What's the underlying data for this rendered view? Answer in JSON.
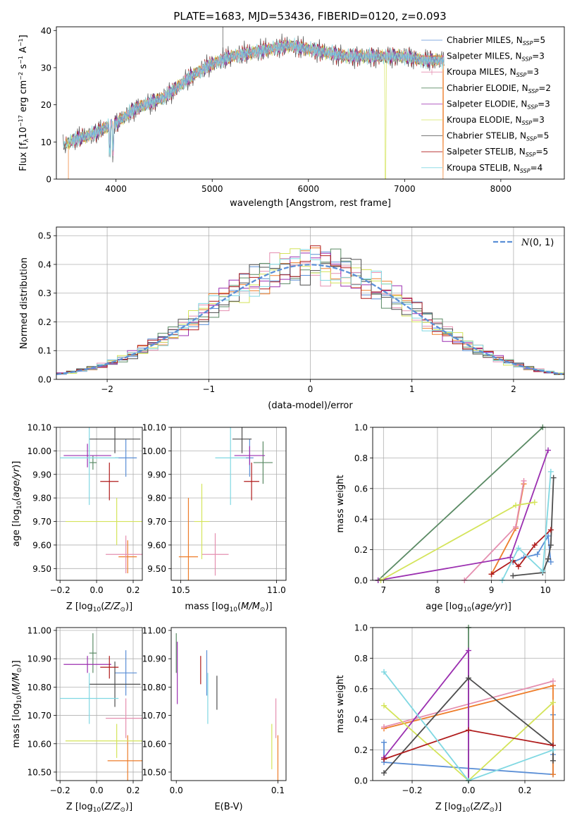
{
  "figure_title": "PLATE=1683, MJD=53436, FIBERID=0120, z=0.093",
  "colors": {
    "Chabrier MILES": "#5b8fd6",
    "Salpeter MILES": "#ee7d2a",
    "Kroupa MILES": "#e58fb0",
    "Chabrier ELODIE": "#5a8a64",
    "Salpeter ELODIE": "#9b2fb0",
    "Kroupa ELODIE": "#d4e45a",
    "Chabrier STELIB": "#4d4d4d",
    "Salpeter STELIB": "#b01c1c",
    "Kroupa STELIB": "#80d8e2",
    "normal": "#5b8fd6",
    "grid": "#b0b0b0"
  },
  "chart_data": [
    {
      "id": "spectrum",
      "type": "line",
      "xlabel": "wavelength [Angstrom, rest frame]",
      "ylabel": "Flux [f_λ10^-17 erg cm^-2 s^-1 A^-1]",
      "xlim": [
        3380,
        8660
      ],
      "ylim": [
        0,
        41
      ],
      "xticks": [
        4000,
        5000,
        6000,
        7000,
        8000
      ],
      "yticks": [
        0,
        10,
        20,
        30,
        40
      ],
      "grid": false,
      "legend_position": "top-right",
      "legend": [
        "Chabrier MILES, N_SSP=5",
        "Salpeter MILES, N_SSP=3",
        "Kroupa MILES, N_SSP=3",
        "Chabrier ELODIE, N_SSP=2",
        "Salpeter ELODIE, N_SSP=3",
        "Kroupa ELODIE, N_SSP=3",
        "Chabrier STELIB, N_SSP=5",
        "Salpeter STELIB, N_SSP=5",
        "Kroupa STELIB, N_SSP=4"
      ],
      "continuum": {
        "x": [
          3450,
          3600,
          3750,
          3900,
          4000,
          4100,
          4200,
          4300,
          4400,
          4500,
          4600,
          4800,
          5000,
          5200,
          5400,
          5600,
          5800,
          6000,
          6200,
          6400,
          6600,
          6800,
          7000,
          7200,
          7400
        ],
        "y": [
          9,
          11,
          12,
          14,
          15,
          17,
          19,
          20,
          21,
          22,
          24,
          28,
          31,
          33,
          34,
          35,
          36,
          35,
          34,
          33,
          33,
          33,
          33,
          32,
          32
        ]
      }
    },
    {
      "id": "residuals",
      "type": "histogram",
      "xlabel": "(data-model)/error",
      "ylabel": "Normed distribution",
      "xlim": [
        -2.5,
        2.5
      ],
      "ylim": [
        0,
        0.53
      ],
      "xticks": [
        -2,
        -1,
        0,
        1,
        2
      ],
      "yticks": [
        0.0,
        0.1,
        0.2,
        0.3,
        0.4,
        0.5
      ],
      "grid": true,
      "legend_position": "top-right",
      "legend": [
        "N(0,1)"
      ],
      "reference_curve": "N(0,1)"
    },
    {
      "id": "age-vs-Z",
      "type": "errorbar",
      "xlabel": "Z [log10(Z/Z_sun)]",
      "ylabel": "age  [log10(age/yr)]",
      "xlim": [
        -0.22,
        0.25
      ],
      "ylim": [
        9.45,
        10.1
      ],
      "xticks": [
        -0.2,
        0.0,
        0.2
      ],
      "yticks": [
        9.5,
        9.6,
        9.7,
        9.8,
        9.9,
        10.0,
        10.1
      ],
      "grid": true,
      "points": [
        {
          "model": "Chabrier MILES",
          "x": 0.16,
          "xerr": 0.06,
          "y": 9.97,
          "yerr": 0.08
        },
        {
          "model": "Salpeter MILES",
          "x": 0.17,
          "xerr": 0.05,
          "y": 9.55,
          "yerr": 0.07
        },
        {
          "model": "Kroupa MILES",
          "x": 0.16,
          "xerr": 0.11,
          "y": 9.56,
          "yerr": 0.08
        },
        {
          "model": "Chabrier ELODIE",
          "x": -0.02,
          "xerr": 0.02,
          "y": 9.95,
          "yerr": 0.03
        },
        {
          "model": "Salpeter ELODIE",
          "x": -0.05,
          "xerr": 0.13,
          "y": 9.98,
          "yerr": 0.05
        },
        {
          "model": "Kroupa ELODIE",
          "x": 0.11,
          "xerr": 0.28,
          "y": 9.7,
          "yerr": 0.1
        },
        {
          "model": "Chabrier STELIB",
          "x": 0.1,
          "xerr": 0.14,
          "y": 10.05,
          "yerr": 0.06
        },
        {
          "model": "Salpeter STELIB",
          "x": 0.07,
          "xerr": 0.05,
          "y": 9.87,
          "yerr": 0.08
        },
        {
          "model": "Kroupa STELIB",
          "x": -0.04,
          "xerr": 0.16,
          "y": 9.97,
          "yerr": 0.2
        }
      ]
    },
    {
      "id": "age-vs-mass",
      "type": "errorbar",
      "xlabel": "mass [log10(M/M_sun)]",
      "ylabel": "",
      "xlim": [
        10.45,
        11.05
      ],
      "ylim": [
        9.45,
        10.1
      ],
      "xticks": [
        10.5,
        11.0
      ],
      "yticks": [
        9.5,
        9.6,
        9.7,
        9.8,
        9.9,
        10.0,
        10.1
      ],
      "grid": true,
      "points": [
        {
          "model": "Chabrier MILES",
          "x": 10.86,
          "xerr": 0.02,
          "y": 9.97,
          "yerr": 0.08
        },
        {
          "model": "Salpeter MILES",
          "x": 10.54,
          "xerr": 0.05,
          "y": 9.55,
          "yerr": 0.25
        },
        {
          "model": "Kroupa MILES",
          "x": 10.68,
          "xerr": 0.07,
          "y": 9.56,
          "yerr": 0.09
        },
        {
          "model": "Chabrier ELODIE",
          "x": 10.93,
          "xerr": 0.05,
          "y": 9.95,
          "yerr": 0.09
        },
        {
          "model": "Salpeter ELODIE",
          "x": 10.86,
          "xerr": 0.08,
          "y": 9.98,
          "yerr": 0.04
        },
        {
          "model": "Kroupa ELODIE",
          "x": 10.61,
          "xerr": 0.04,
          "y": 9.7,
          "yerr": 0.16
        },
        {
          "model": "Chabrier STELIB",
          "x": 10.82,
          "xerr": 0.05,
          "y": 10.05,
          "yerr": 0.06
        },
        {
          "model": "Salpeter STELIB",
          "x": 10.87,
          "xerr": 0.04,
          "y": 9.87,
          "yerr": 0.08
        },
        {
          "model": "Kroupa STELIB",
          "x": 10.76,
          "xerr": 0.08,
          "y": 9.97,
          "yerr": 0.2
        }
      ]
    },
    {
      "id": "weights-vs-age",
      "type": "line",
      "xlabel": "age  [log10(age/yr)]",
      "ylabel": "mass weight",
      "xlim": [
        6.8,
        10.35
      ],
      "ylim": [
        0,
        1.0
      ],
      "xticks": [
        7,
        8,
        9,
        10
      ],
      "yticks": [
        0.0,
        0.2,
        0.4,
        0.6,
        0.8,
        1.0
      ],
      "grid": true,
      "series": [
        {
          "model": "Chabrier MILES",
          "x": [
            9.4,
            9.6,
            9.85,
            10.05,
            10.1
          ],
          "y": [
            0.12,
            0.15,
            0.17,
            0.29,
            0.12
          ]
        },
        {
          "model": "Salpeter MILES",
          "x": [
            9.0,
            9.45,
            9.6
          ],
          "y": [
            0.04,
            0.34,
            0.63
          ]
        },
        {
          "model": "Kroupa MILES",
          "x": [
            8.5,
            9.45,
            9.6
          ],
          "y": [
            0.0,
            0.35,
            0.65
          ]
        },
        {
          "model": "Chabrier ELODIE",
          "x": [
            6.9,
            9.95
          ],
          "y": [
            0.0,
            1.0
          ]
        },
        {
          "model": "Salpeter ELODIE",
          "x": [
            6.9,
            9.35,
            10.05
          ],
          "y": [
            0.0,
            0.15,
            0.85
          ]
        },
        {
          "model": "Kroupa ELODIE",
          "x": [
            6.95,
            9.45,
            9.8
          ],
          "y": [
            0.0,
            0.49,
            0.51
          ]
        },
        {
          "model": "Chabrier STELIB",
          "x": [
            9.4,
            9.95,
            10.05,
            10.1,
            10.15
          ],
          "y": [
            0.03,
            0.05,
            0.14,
            0.23,
            0.67
          ]
        },
        {
          "model": "Salpeter STELIB",
          "x": [
            9.0,
            9.4,
            9.5,
            9.8,
            10.1
          ],
          "y": [
            0.04,
            0.13,
            0.09,
            0.23,
            0.33
          ]
        },
        {
          "model": "Kroupa STELIB",
          "x": [
            9.2,
            9.5,
            9.95,
            10.1
          ],
          "y": [
            0.0,
            0.21,
            0.06,
            0.71
          ]
        }
      ]
    },
    {
      "id": "mass-vs-Z",
      "type": "errorbar",
      "xlabel": "Z [log10(Z/Z_sun)]",
      "ylabel": "mass [log10(M/M_sun)]",
      "xlim": [
        -0.22,
        0.25
      ],
      "ylim": [
        10.47,
        11.01
      ],
      "xticks": [
        -0.2,
        0.0,
        0.2
      ],
      "yticks": [
        10.5,
        10.6,
        10.7,
        10.8,
        10.9,
        11.0
      ],
      "grid": true,
      "points": [
        {
          "model": "Chabrier MILES",
          "x": 0.16,
          "xerr": 0.06,
          "y": 10.85,
          "yerr": 0.08
        },
        {
          "model": "Salpeter MILES",
          "x": 0.17,
          "xerr": 0.11,
          "y": 10.54,
          "yerr": 0.09
        },
        {
          "model": "Kroupa MILES",
          "x": 0.16,
          "xerr": 0.11,
          "y": 10.69,
          "yerr": 0.07
        },
        {
          "model": "Chabrier ELODIE",
          "x": -0.02,
          "xerr": 0.02,
          "y": 10.92,
          "yerr": 0.07
        },
        {
          "model": "Salpeter ELODIE",
          "x": -0.05,
          "xerr": 0.13,
          "y": 10.88,
          "yerr": 0.03
        },
        {
          "model": "Kroupa ELODIE",
          "x": 0.11,
          "xerr": 0.28,
          "y": 10.61,
          "yerr": 0.06
        },
        {
          "model": "Chabrier STELIB",
          "x": 0.1,
          "xerr": 0.14,
          "y": 10.81,
          "yerr": 0.08
        },
        {
          "model": "Salpeter STELIB",
          "x": 0.07,
          "xerr": 0.05,
          "y": 10.87,
          "yerr": 0.04
        },
        {
          "model": "Kroupa STELIB",
          "x": -0.04,
          "xerr": 0.16,
          "y": 10.76,
          "yerr": 0.09
        }
      ]
    },
    {
      "id": "mass-vs-EBV",
      "type": "errorbar",
      "xlabel": "E(B-V)",
      "ylabel": "",
      "xlim": [
        -0.005,
        0.108
      ],
      "ylim": [
        10.47,
        11.01
      ],
      "xticks": [
        0.0,
        0.1
      ],
      "yticks": [
        10.5,
        10.6,
        10.7,
        10.8,
        10.9,
        11.0
      ],
      "grid": false,
      "points": [
        {
          "model": "Chabrier MILES",
          "x": 0.03,
          "y": 10.85,
          "yerr": 0.08
        },
        {
          "model": "Salpeter MILES",
          "x": 0.1,
          "y": 10.54,
          "yerr": 0.09
        },
        {
          "model": "Kroupa MILES",
          "x": 0.098,
          "y": 10.69,
          "yerr": 0.07
        },
        {
          "model": "Chabrier ELODIE",
          "x": 0.0,
          "y": 10.92,
          "yerr": 0.07
        },
        {
          "model": "Salpeter ELODIE",
          "x": 0.001,
          "y": 10.85,
          "yerr": 0.11
        },
        {
          "model": "Kroupa ELODIE",
          "x": 0.094,
          "y": 10.59,
          "yerr": 0.08
        },
        {
          "model": "Chabrier STELIB",
          "x": 0.04,
          "y": 10.78,
          "yerr": 0.06
        },
        {
          "model": "Salpeter STELIB",
          "x": 0.024,
          "y": 10.86,
          "yerr": 0.05
        },
        {
          "model": "Kroupa STELIB",
          "x": 0.031,
          "y": 10.76,
          "yerr": 0.09
        }
      ]
    },
    {
      "id": "weights-vs-Z",
      "type": "line",
      "xlabel": "Z [log10(Z/Z_sun)]",
      "ylabel": "mass weight",
      "xlim": [
        -0.34,
        0.34
      ],
      "ylim": [
        0,
        1.0
      ],
      "xticks": [
        -0.2,
        0.0,
        0.2
      ],
      "yticks": [
        0.0,
        0.2,
        0.4,
        0.6,
        0.8,
        1.0
      ],
      "grid": true,
      "series": [
        {
          "model": "Chabrier MILES",
          "x": [
            -0.3,
            -0.3,
            0.3,
            0.3,
            0.3
          ],
          "y": [
            0.25,
            0.12,
            0.04,
            0.17,
            0.43
          ]
        },
        {
          "model": "Salpeter MILES",
          "x": [
            -0.3,
            0.3,
            0.3
          ],
          "y": [
            0.34,
            0.62,
            0.04
          ]
        },
        {
          "model": "Kroupa MILES",
          "x": [
            -0.3,
            0.3
          ],
          "y": [
            0.35,
            0.65
          ]
        },
        {
          "model": "Chabrier ELODIE",
          "x": [
            0.0,
            0.0
          ],
          "y": [
            1.0,
            0.0
          ]
        },
        {
          "model": "Salpeter ELODIE",
          "x": [
            -0.3,
            0.0,
            0.0
          ],
          "y": [
            0.15,
            0.85,
            0.0
          ]
        },
        {
          "model": "Kroupa ELODIE",
          "x": [
            -0.3,
            0.0,
            0.3
          ],
          "y": [
            0.49,
            0.0,
            0.51
          ]
        },
        {
          "model": "Chabrier STELIB",
          "x": [
            -0.3,
            0.0,
            0.3,
            0.3
          ],
          "y": [
            0.05,
            0.67,
            0.23,
            0.13
          ]
        },
        {
          "model": "Salpeter STELIB",
          "x": [
            -0.3,
            0.0,
            0.3
          ],
          "y": [
            0.14,
            0.33,
            0.23
          ]
        },
        {
          "model": "Kroupa STELIB",
          "x": [
            -0.3,
            0.0,
            0.3
          ],
          "y": [
            0.71,
            0.0,
            0.2
          ]
        }
      ]
    }
  ]
}
